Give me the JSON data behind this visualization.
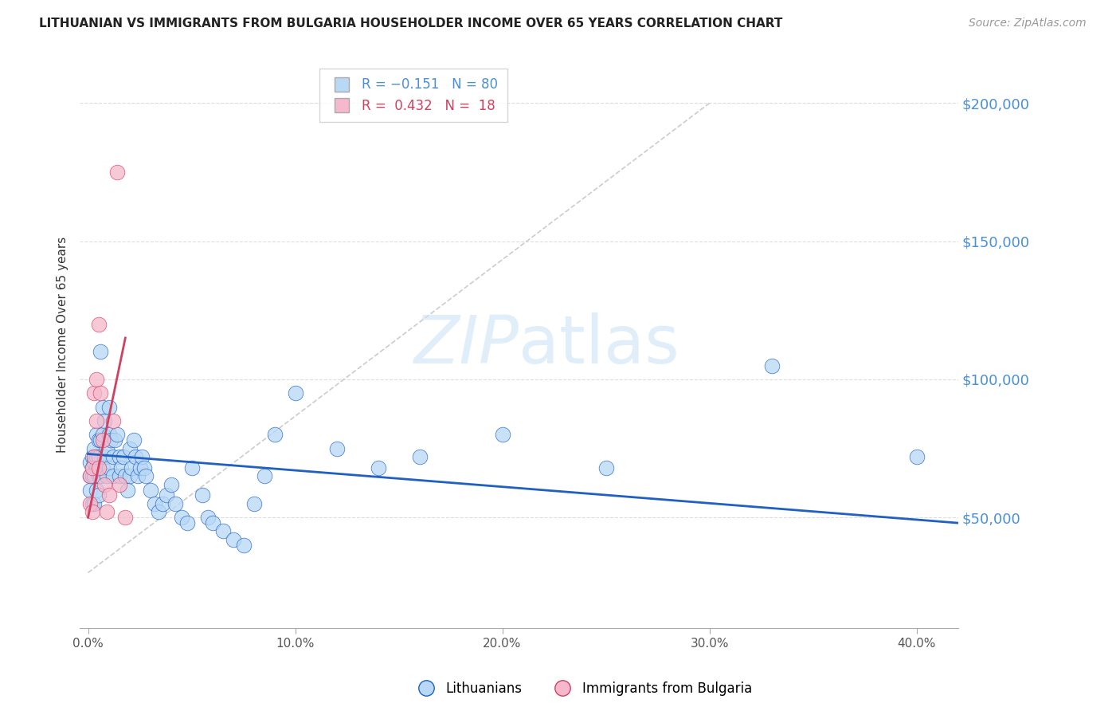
{
  "title": "LITHUANIAN VS IMMIGRANTS FROM BULGARIA HOUSEHOLDER INCOME OVER 65 YEARS CORRELATION CHART",
  "source": "Source: ZipAtlas.com",
  "ylabel": "Householder Income Over 65 years",
  "xlabel_ticks": [
    "0.0%",
    "10.0%",
    "20.0%",
    "30.0%",
    "40.0%"
  ],
  "xlabel_tick_vals": [
    0.0,
    0.1,
    0.2,
    0.3,
    0.4
  ],
  "ytick_labels": [
    "$50,000",
    "$100,000",
    "$150,000",
    "$200,000"
  ],
  "ytick_vals": [
    50000,
    100000,
    150000,
    200000
  ],
  "ylim": [
    10000,
    215000
  ],
  "xlim": [
    -0.004,
    0.42
  ],
  "watermark_zip": "ZIP",
  "watermark_atlas": "atlas",
  "dot_color_blue": "#b8d8f5",
  "dot_color_pink": "#f5b8cc",
  "line_color_blue": "#2060c0",
  "line_color_pink": "#d04060",
  "line_color_diag": "#cccccc",
  "background_color": "#ffffff",
  "grid_color": "#dddddd",
  "blue_x": [
    0.001,
    0.001,
    0.001,
    0.002,
    0.002,
    0.002,
    0.002,
    0.003,
    0.003,
    0.003,
    0.003,
    0.004,
    0.004,
    0.004,
    0.004,
    0.005,
    0.005,
    0.005,
    0.005,
    0.006,
    0.006,
    0.006,
    0.007,
    0.007,
    0.007,
    0.008,
    0.008,
    0.009,
    0.009,
    0.01,
    0.01,
    0.01,
    0.011,
    0.012,
    0.012,
    0.013,
    0.014,
    0.015,
    0.015,
    0.016,
    0.017,
    0.018,
    0.019,
    0.02,
    0.02,
    0.021,
    0.022,
    0.023,
    0.024,
    0.025,
    0.026,
    0.027,
    0.028,
    0.03,
    0.032,
    0.034,
    0.036,
    0.038,
    0.04,
    0.042,
    0.045,
    0.048,
    0.05,
    0.055,
    0.058,
    0.06,
    0.065,
    0.07,
    0.075,
    0.08,
    0.085,
    0.09,
    0.1,
    0.12,
    0.14,
    0.16,
    0.2,
    0.25,
    0.33,
    0.4
  ],
  "blue_y": [
    70000,
    65000,
    60000,
    72000,
    68000,
    65000,
    55000,
    75000,
    70000,
    65000,
    55000,
    80000,
    72000,
    68000,
    60000,
    78000,
    72000,
    65000,
    58000,
    110000,
    78000,
    65000,
    90000,
    80000,
    68000,
    85000,
    72000,
    75000,
    65000,
    90000,
    80000,
    68000,
    78000,
    72000,
    65000,
    78000,
    80000,
    72000,
    65000,
    68000,
    72000,
    65000,
    60000,
    75000,
    65000,
    68000,
    78000,
    72000,
    65000,
    68000,
    72000,
    68000,
    65000,
    60000,
    55000,
    52000,
    55000,
    58000,
    62000,
    55000,
    50000,
    48000,
    68000,
    58000,
    50000,
    48000,
    45000,
    42000,
    40000,
    55000,
    65000,
    80000,
    95000,
    75000,
    68000,
    72000,
    80000,
    68000,
    105000,
    72000
  ],
  "pink_x": [
    0.001,
    0.001,
    0.002,
    0.002,
    0.003,
    0.003,
    0.004,
    0.004,
    0.005,
    0.005,
    0.006,
    0.007,
    0.008,
    0.009,
    0.01,
    0.012,
    0.015,
    0.018
  ],
  "pink_y": [
    65000,
    55000,
    68000,
    52000,
    95000,
    72000,
    100000,
    85000,
    120000,
    68000,
    95000,
    78000,
    62000,
    52000,
    58000,
    85000,
    62000,
    50000
  ],
  "pink_outlier_x": [
    0.014
  ],
  "pink_outlier_y": [
    175000
  ],
  "blue_line_x": [
    0.0,
    0.42
  ],
  "blue_line_y": [
    73000,
    48000
  ],
  "pink_line_x": [
    0.0,
    0.018
  ],
  "pink_line_y": [
    50000,
    115000
  ],
  "diag_line_x": [
    0.0,
    0.3
  ],
  "diag_line_y": [
    30000,
    200000
  ]
}
